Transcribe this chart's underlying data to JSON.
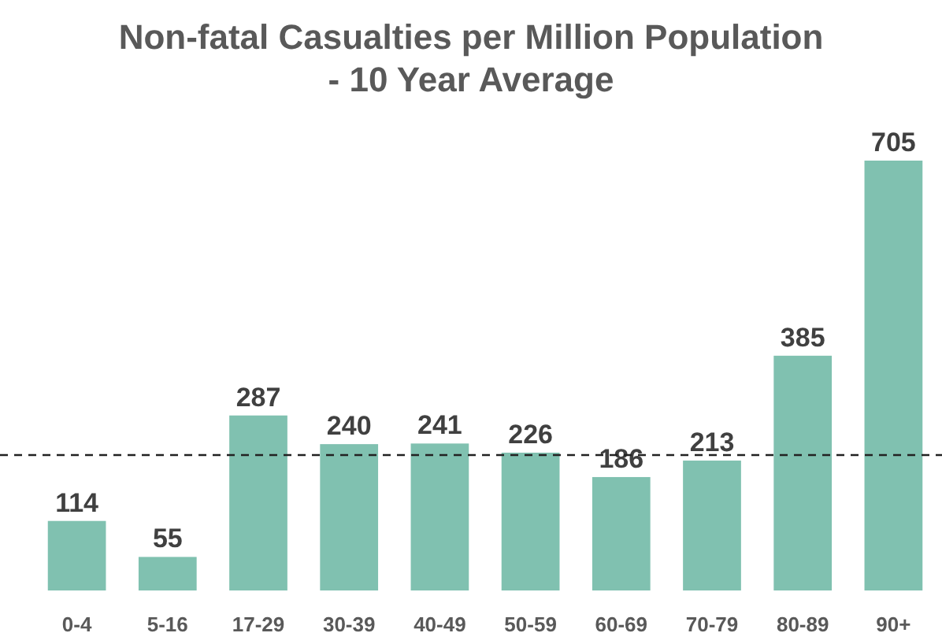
{
  "chart_data": {
    "type": "bar",
    "title": "Non-fatal Casualties per Million Population\n- 10 Year Average",
    "categories": [
      "0-4",
      "5-16",
      "17-29",
      "30-39",
      "40-49",
      "50-59",
      "60-69",
      "70-79",
      "80-89",
      "90+"
    ],
    "values": [
      114,
      55,
      287,
      240,
      241,
      226,
      186,
      213,
      385,
      705
    ],
    "color": "#80c1b0",
    "data_labels": true,
    "ref_lines": [
      {
        "axis": "y",
        "value": 222,
        "line_style": "dashed",
        "color": "#222222"
      }
    ]
  }
}
